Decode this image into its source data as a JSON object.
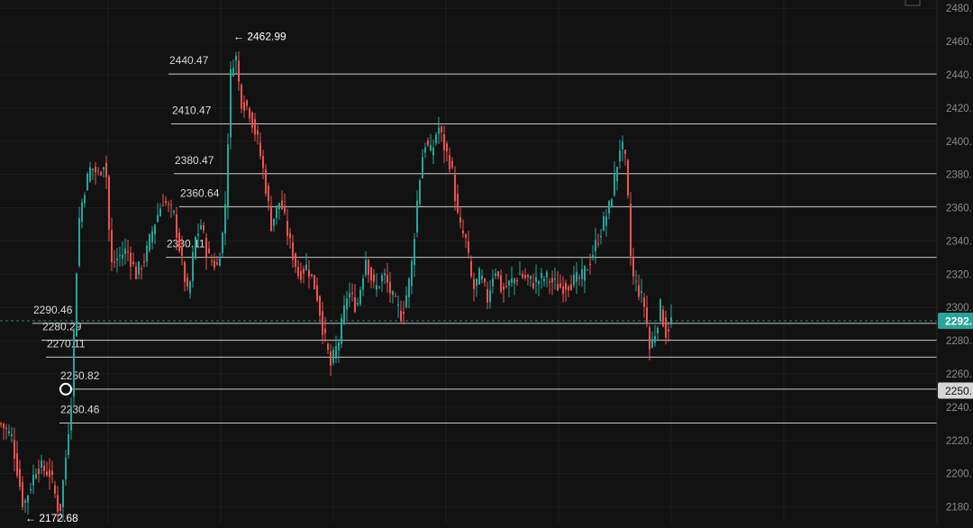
{
  "colors": {
    "background": "#121212",
    "grid": "#1e1e1e",
    "up": "#26a69a",
    "down": "#ef5350",
    "level_line": "#c8c8c8",
    "current_price_badge": "#26a69a",
    "marked_price_badge": "#d6d6d6",
    "axis_text": "#8a8a8a",
    "label_text": "#d9d9d9"
  },
  "chart_data": {
    "type": "candlestick",
    "y_axis": {
      "position": "right",
      "ylim": [
        2170,
        2485
      ],
      "tick_labels": [
        "2460.",
        "2440.",
        "2420.",
        "2400.",
        "2380.",
        "2360.",
        "2340.",
        "2320.",
        "2300.",
        "2280.",
        "2260.",
        "2240.",
        "2220.",
        "2200.",
        "2180."
      ],
      "tick_values": [
        2460,
        2440,
        2420,
        2400,
        2380,
        2360,
        2340,
        2320,
        2300,
        2280,
        2260,
        2240,
        2220,
        2200,
        2180
      ],
      "top_partial_tick": {
        "label": "2480.",
        "value": 2480
      }
    },
    "grid": true,
    "horizontal_levels": [
      {
        "value": 2440.47,
        "label": "2440.47"
      },
      {
        "value": 2410.47,
        "label": "2410.47"
      },
      {
        "value": 2380.47,
        "label": "2380.47"
      },
      {
        "value": 2360.64,
        "label": "2360.64"
      },
      {
        "value": 2330.11,
        "label": "2330.11"
      },
      {
        "value": 2290.46,
        "label": "2290.46"
      },
      {
        "value": 2280.29,
        "label": "2280.29"
      },
      {
        "value": 2270.11,
        "label": "2270.11"
      },
      {
        "value": 2250.82,
        "label": "2250.82"
      },
      {
        "value": 2230.46,
        "label": "2230.46"
      }
    ],
    "high_marker": {
      "value": 2462.99,
      "label": "← 2462.99"
    },
    "low_marker": {
      "value": 2172.68,
      "label": "← 2172.68"
    },
    "current_price": {
      "value": 2292,
      "label": "2292."
    },
    "marked_price": {
      "value": 2250,
      "label": "2250."
    },
    "path_anchors": [
      [
        0,
        2230
      ],
      [
        12,
        2222
      ],
      [
        25,
        2180
      ],
      [
        40,
        2205
      ],
      [
        55,
        2200
      ],
      [
        65,
        2175
      ],
      [
        72,
        2210
      ],
      [
        78,
        2245
      ],
      [
        86,
        2350
      ],
      [
        92,
        2370
      ],
      [
        100,
        2385
      ],
      [
        108,
        2380
      ],
      [
        116,
        2390
      ],
      [
        122,
        2325
      ],
      [
        130,
        2330
      ],
      [
        140,
        2335
      ],
      [
        150,
        2320
      ],
      [
        160,
        2330
      ],
      [
        170,
        2350
      ],
      [
        180,
        2365
      ],
      [
        192,
        2355
      ],
      [
        200,
        2330
      ],
      [
        208,
        2305
      ],
      [
        215,
        2340
      ],
      [
        222,
        2350
      ],
      [
        230,
        2330
      ],
      [
        240,
        2325
      ],
      [
        248,
        2350
      ],
      [
        255,
        2440
      ],
      [
        260,
        2455
      ],
      [
        266,
        2425
      ],
      [
        275,
        2420
      ],
      [
        285,
        2400
      ],
      [
        292,
        2380
      ],
      [
        300,
        2350
      ],
      [
        310,
        2365
      ],
      [
        320,
        2340
      ],
      [
        330,
        2320
      ],
      [
        340,
        2325
      ],
      [
        350,
        2310
      ],
      [
        358,
        2285
      ],
      [
        366,
        2265
      ],
      [
        375,
        2280
      ],
      [
        385,
        2310
      ],
      [
        395,
        2300
      ],
      [
        405,
        2330
      ],
      [
        415,
        2310
      ],
      [
        425,
        2320
      ],
      [
        435,
        2305
      ],
      [
        445,
        2295
      ],
      [
        455,
        2320
      ],
      [
        463,
        2370
      ],
      [
        470,
        2400
      ],
      [
        478,
        2392
      ],
      [
        485,
        2410
      ],
      [
        493,
        2395
      ],
      [
        500,
        2385
      ],
      [
        508,
        2350
      ],
      [
        516,
        2340
      ],
      [
        524,
        2310
      ],
      [
        532,
        2320
      ],
      [
        540,
        2305
      ],
      [
        548,
        2325
      ],
      [
        556,
        2310
      ],
      [
        566,
        2315
      ],
      [
        576,
        2320
      ],
      [
        590,
        2315
      ],
      [
        605,
        2318
      ],
      [
        620,
        2312
      ],
      [
        632,
        2315
      ],
      [
        645,
        2318
      ],
      [
        655,
        2330
      ],
      [
        665,
        2345
      ],
      [
        675,
        2360
      ],
      [
        682,
        2380
      ],
      [
        688,
        2400
      ],
      [
        694,
        2385
      ],
      [
        700,
        2320
      ],
      [
        708,
        2310
      ],
      [
        715,
        2300
      ],
      [
        720,
        2275
      ],
      [
        726,
        2285
      ],
      [
        732,
        2300
      ],
      [
        738,
        2285
      ],
      [
        744,
        2292
      ]
    ]
  }
}
